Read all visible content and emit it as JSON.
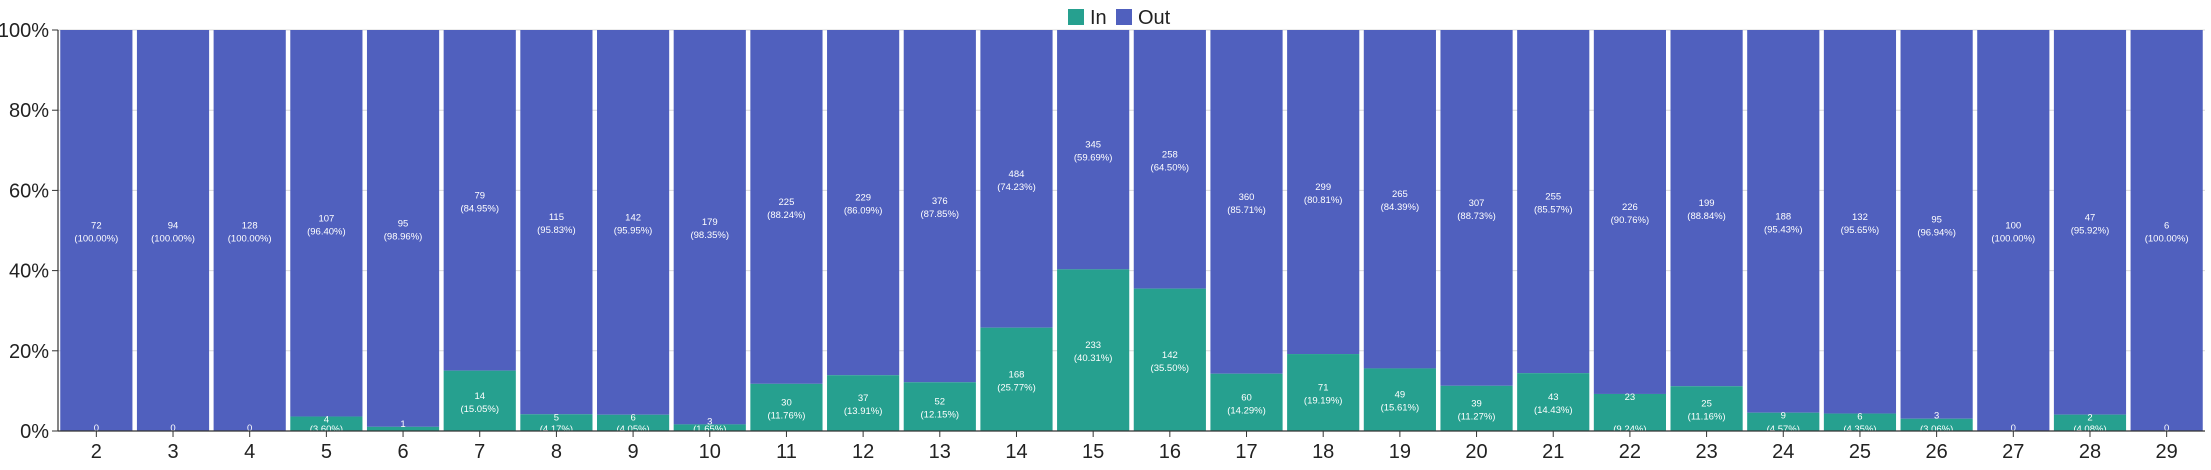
{
  "chart_data": {
    "type": "bar",
    "stacked": true,
    "normalized": true,
    "title": "",
    "xlabel": "",
    "ylabel": "",
    "ylim": [
      0,
      100
    ],
    "y_ticks": [
      "0%",
      "20%",
      "40%",
      "60%",
      "80%",
      "100%"
    ],
    "legend_position": "top-center",
    "grid": true,
    "categories": [
      "2",
      "3",
      "4",
      "5",
      "6",
      "7",
      "8",
      "9",
      "10",
      "11",
      "12",
      "13",
      "14",
      "15",
      "16",
      "17",
      "18",
      "19",
      "20",
      "21",
      "22",
      "23",
      "24",
      "25",
      "26",
      "27",
      "28",
      "29"
    ],
    "series": [
      {
        "name": "In",
        "color": "#26a08f",
        "values": [
          0,
          0,
          0,
          4,
          1,
          14,
          5,
          6,
          3,
          30,
          37,
          52,
          168,
          233,
          142,
          60,
          71,
          49,
          39,
          43,
          23,
          25,
          9,
          6,
          3,
          0,
          2,
          0
        ],
        "percent_labels": [
          "",
          "",
          "",
          "(3.60%)",
          "",
          "(15.05%)",
          "(4.17%)",
          "(4.05%)",
          "(1.65%)",
          "(11.76%)",
          "(13.91%)",
          "(12.15%)",
          "(25.77%)",
          "(40.31%)",
          "(35.50%)",
          "(14.29%)",
          "(19.19%)",
          "(15.61%)",
          "(11.27%)",
          "(14.43%)",
          "(9.24%)",
          "(11.16%)",
          "(4.57%)",
          "(4.35%)",
          "(3.06%)",
          "",
          "(4.08%)",
          ""
        ]
      },
      {
        "name": "Out",
        "color": "#5060be",
        "values": [
          72,
          94,
          128,
          107,
          95,
          79,
          115,
          142,
          179,
          225,
          229,
          376,
          484,
          345,
          258,
          360,
          299,
          265,
          307,
          255,
          226,
          199,
          188,
          132,
          95,
          100,
          47,
          6
        ],
        "percent_labels": [
          "(100.00%)",
          "(100.00%)",
          "(100.00%)",
          "(96.40%)",
          "(98.96%)",
          "(84.95%)",
          "(95.83%)",
          "(95.95%)",
          "(98.35%)",
          "(88.24%)",
          "(86.09%)",
          "(87.85%)",
          "(74.23%)",
          "(59.69%)",
          "(64.50%)",
          "(85.71%)",
          "(80.81%)",
          "(84.39%)",
          "(88.73%)",
          "(85.57%)",
          "(90.76%)",
          "(88.84%)",
          "(95.43%)",
          "(95.65%)",
          "(96.94%)",
          "(100.00%)",
          "(95.92%)",
          "(100.00%)"
        ]
      }
    ]
  }
}
